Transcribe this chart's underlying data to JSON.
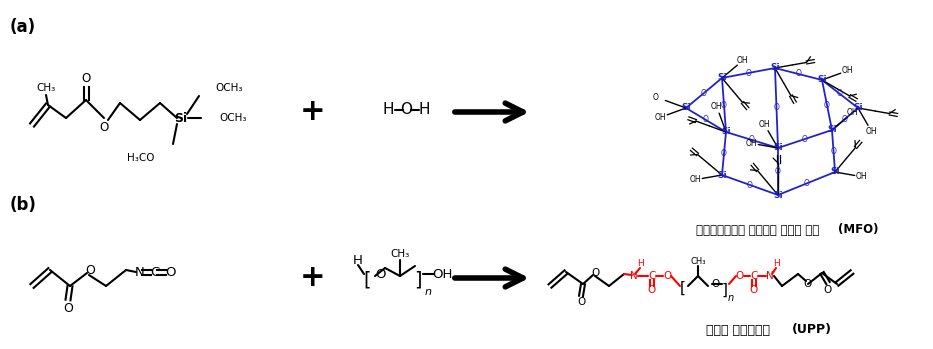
{
  "background_color": "#ffffff",
  "figsize": [
    9.33,
    3.49
  ],
  "dpi": 100,
  "label_a": "(a)",
  "label_b": "(b)",
  "text_mfo_normal": "메타크릴레이트 관능화된 실록산 레진 ",
  "text_mfo_bold": "(MFO)",
  "text_upp_normal": "우레탄 프리폴리머 ",
  "text_upp_bold": "(UPP)"
}
